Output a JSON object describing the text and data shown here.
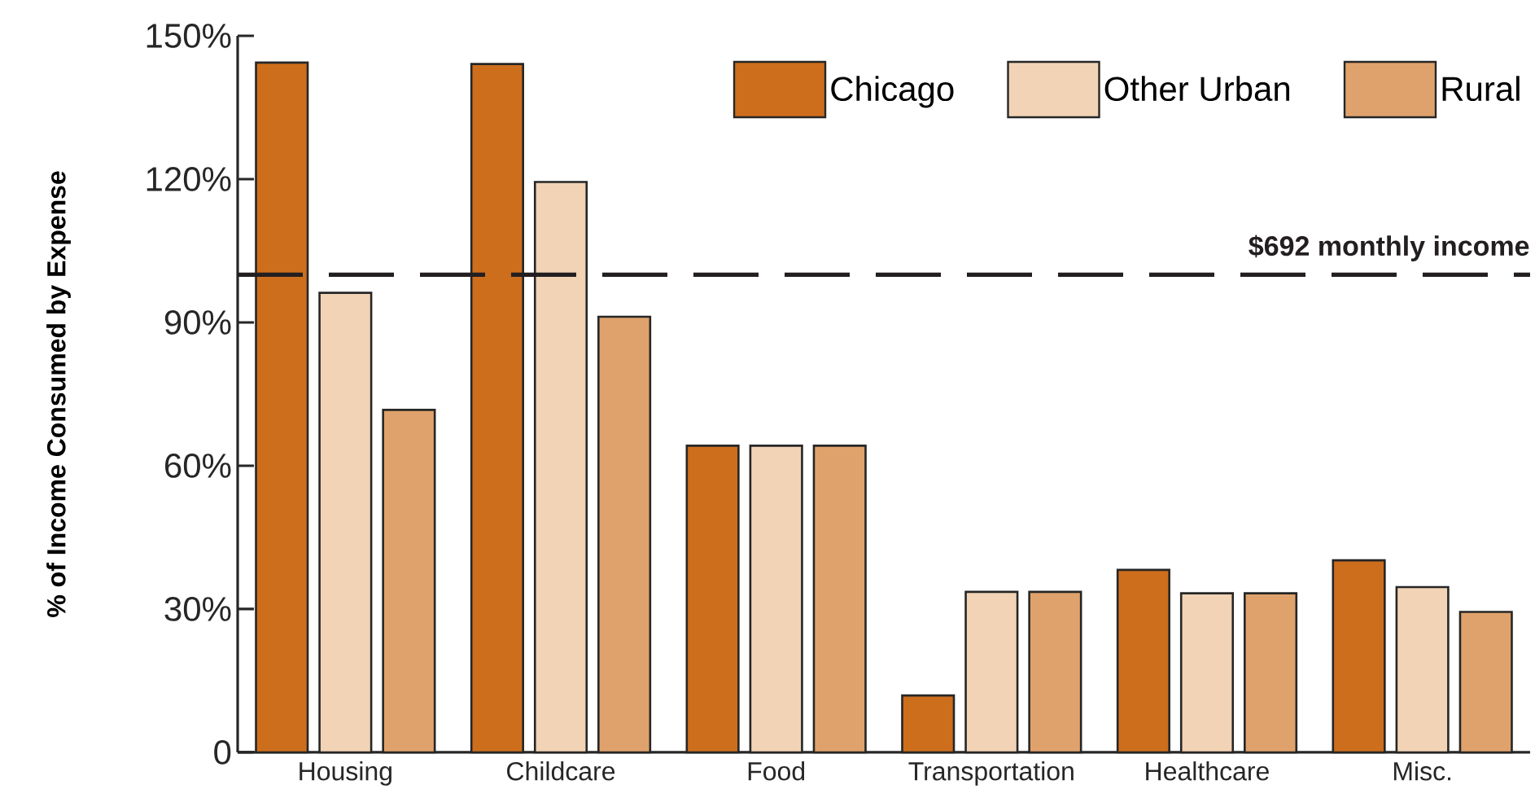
{
  "chart_data": {
    "type": "bar",
    "ylabel": "% of Income Consumed by Expense",
    "categories": [
      "Housing",
      "Childcare",
      "Food",
      "Transportation",
      "Healthcare",
      "Misc."
    ],
    "series": [
      {
        "name": "Chicago",
        "color": "#cd6e1d",
        "values": [
          144.4,
          144.1,
          64.2,
          11.9,
          38.2,
          40.2
        ]
      },
      {
        "name": "Other Urban",
        "color": "#f2d3b6",
        "values": [
          96.2,
          119.4,
          64.2,
          33.6,
          33.3,
          34.6
        ]
      },
      {
        "name": "Rural",
        "color": "#e0a26c",
        "values": [
          71.7,
          91.2,
          64.2,
          33.6,
          33.3,
          29.4
        ]
      }
    ],
    "ylim": [
      0,
      150
    ],
    "yticks": [
      {
        "value": 0,
        "label": "0"
      },
      {
        "value": 30,
        "label": "30%"
      },
      {
        "value": 60,
        "label": "60%"
      },
      {
        "value": 90,
        "label": "90%"
      },
      {
        "value": 120,
        "label": "120%"
      },
      {
        "value": 150,
        "label": "150%"
      }
    ],
    "ref_lines": [
      {
        "axis": "y",
        "value": 100,
        "label": "$692 monthly income",
        "line_style": "dashed",
        "color": "#231f20"
      }
    ],
    "legend": "top right",
    "grid": false
  }
}
